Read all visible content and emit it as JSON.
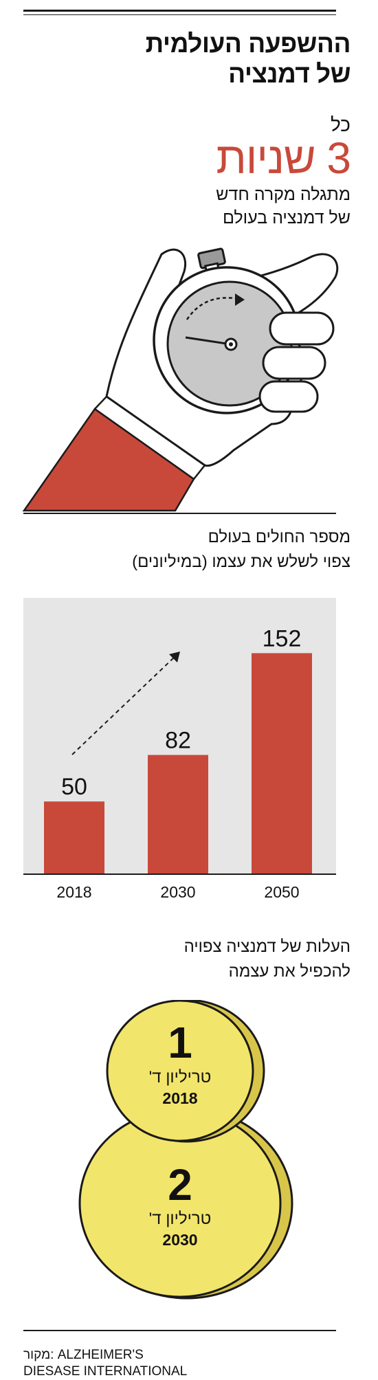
{
  "header": {
    "title_line1": "ההשפעה העולמית",
    "title_line2": "של דמנציה"
  },
  "frequency": {
    "prefix": "כל",
    "big_value": "3 שניות",
    "desc_line1": "מתגלה מקרה חדש",
    "desc_line2": "של דמנציה בעולם"
  },
  "chart_section": {
    "title_line1": "מספר החולים בעולם",
    "title_line2": "צפוי לשלש את עצמו (במיליונים)"
  },
  "chart_data": {
    "type": "bar",
    "categories": [
      "2018",
      "2030",
      "2050"
    ],
    "values": [
      50,
      82,
      152
    ],
    "ylim": [
      0,
      190
    ],
    "grid": false,
    "bar_color": "#c8493a",
    "background_color": "#e6e6e6"
  },
  "cost": {
    "title_line1": "העלות של דמנציה צפויה",
    "title_line2": "להכפיל את עצמה",
    "coins": [
      {
        "value": "1",
        "unit": "טריליון ד'",
        "year": "2018"
      },
      {
        "value": "2",
        "unit": "טריליון ד'",
        "year": "2030"
      }
    ],
    "coin_color": "#f2e56b"
  },
  "source": {
    "line1": "מקור: ALZHEIMER'S",
    "line2": "DIESASE INTERNATIONAL"
  },
  "colors": {
    "accent": "#c8493a",
    "watch_face": "#c8c8c8",
    "ink": "#1a1a1a"
  }
}
